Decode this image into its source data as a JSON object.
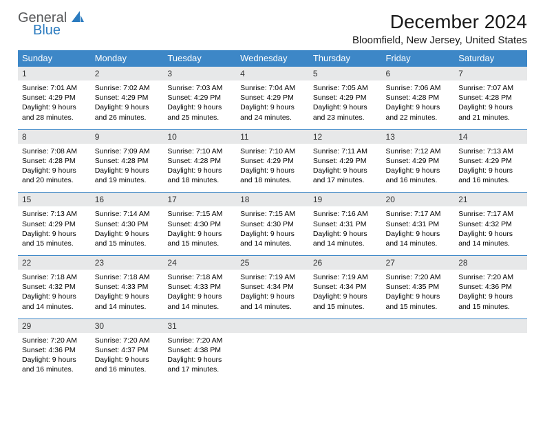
{
  "brand": {
    "part1": "General",
    "part2": "Blue"
  },
  "title": "December 2024",
  "location": "Bloomfield, New Jersey, United States",
  "colors": {
    "header_bg": "#3d87c7",
    "daynum_bg": "#e7e8e9",
    "row_border": "#3d87c7",
    "logo_gray": "#58595b",
    "logo_blue": "#2b7bbf"
  },
  "dow": [
    "Sunday",
    "Monday",
    "Tuesday",
    "Wednesday",
    "Thursday",
    "Friday",
    "Saturday"
  ],
  "weeks": [
    [
      {
        "n": "1",
        "sr": "Sunrise: 7:01 AM",
        "ss": "Sunset: 4:29 PM",
        "d1": "Daylight: 9 hours",
        "d2": "and 28 minutes."
      },
      {
        "n": "2",
        "sr": "Sunrise: 7:02 AM",
        "ss": "Sunset: 4:29 PM",
        "d1": "Daylight: 9 hours",
        "d2": "and 26 minutes."
      },
      {
        "n": "3",
        "sr": "Sunrise: 7:03 AM",
        "ss": "Sunset: 4:29 PM",
        "d1": "Daylight: 9 hours",
        "d2": "and 25 minutes."
      },
      {
        "n": "4",
        "sr": "Sunrise: 7:04 AM",
        "ss": "Sunset: 4:29 PM",
        "d1": "Daylight: 9 hours",
        "d2": "and 24 minutes."
      },
      {
        "n": "5",
        "sr": "Sunrise: 7:05 AM",
        "ss": "Sunset: 4:29 PM",
        "d1": "Daylight: 9 hours",
        "d2": "and 23 minutes."
      },
      {
        "n": "6",
        "sr": "Sunrise: 7:06 AM",
        "ss": "Sunset: 4:28 PM",
        "d1": "Daylight: 9 hours",
        "d2": "and 22 minutes."
      },
      {
        "n": "7",
        "sr": "Sunrise: 7:07 AM",
        "ss": "Sunset: 4:28 PM",
        "d1": "Daylight: 9 hours",
        "d2": "and 21 minutes."
      }
    ],
    [
      {
        "n": "8",
        "sr": "Sunrise: 7:08 AM",
        "ss": "Sunset: 4:28 PM",
        "d1": "Daylight: 9 hours",
        "d2": "and 20 minutes."
      },
      {
        "n": "9",
        "sr": "Sunrise: 7:09 AM",
        "ss": "Sunset: 4:28 PM",
        "d1": "Daylight: 9 hours",
        "d2": "and 19 minutes."
      },
      {
        "n": "10",
        "sr": "Sunrise: 7:10 AM",
        "ss": "Sunset: 4:28 PM",
        "d1": "Daylight: 9 hours",
        "d2": "and 18 minutes."
      },
      {
        "n": "11",
        "sr": "Sunrise: 7:10 AM",
        "ss": "Sunset: 4:29 PM",
        "d1": "Daylight: 9 hours",
        "d2": "and 18 minutes."
      },
      {
        "n": "12",
        "sr": "Sunrise: 7:11 AM",
        "ss": "Sunset: 4:29 PM",
        "d1": "Daylight: 9 hours",
        "d2": "and 17 minutes."
      },
      {
        "n": "13",
        "sr": "Sunrise: 7:12 AM",
        "ss": "Sunset: 4:29 PM",
        "d1": "Daylight: 9 hours",
        "d2": "and 16 minutes."
      },
      {
        "n": "14",
        "sr": "Sunrise: 7:13 AM",
        "ss": "Sunset: 4:29 PM",
        "d1": "Daylight: 9 hours",
        "d2": "and 16 minutes."
      }
    ],
    [
      {
        "n": "15",
        "sr": "Sunrise: 7:13 AM",
        "ss": "Sunset: 4:29 PM",
        "d1": "Daylight: 9 hours",
        "d2": "and 15 minutes."
      },
      {
        "n": "16",
        "sr": "Sunrise: 7:14 AM",
        "ss": "Sunset: 4:30 PM",
        "d1": "Daylight: 9 hours",
        "d2": "and 15 minutes."
      },
      {
        "n": "17",
        "sr": "Sunrise: 7:15 AM",
        "ss": "Sunset: 4:30 PM",
        "d1": "Daylight: 9 hours",
        "d2": "and 15 minutes."
      },
      {
        "n": "18",
        "sr": "Sunrise: 7:15 AM",
        "ss": "Sunset: 4:30 PM",
        "d1": "Daylight: 9 hours",
        "d2": "and 14 minutes."
      },
      {
        "n": "19",
        "sr": "Sunrise: 7:16 AM",
        "ss": "Sunset: 4:31 PM",
        "d1": "Daylight: 9 hours",
        "d2": "and 14 minutes."
      },
      {
        "n": "20",
        "sr": "Sunrise: 7:17 AM",
        "ss": "Sunset: 4:31 PM",
        "d1": "Daylight: 9 hours",
        "d2": "and 14 minutes."
      },
      {
        "n": "21",
        "sr": "Sunrise: 7:17 AM",
        "ss": "Sunset: 4:32 PM",
        "d1": "Daylight: 9 hours",
        "d2": "and 14 minutes."
      }
    ],
    [
      {
        "n": "22",
        "sr": "Sunrise: 7:18 AM",
        "ss": "Sunset: 4:32 PM",
        "d1": "Daylight: 9 hours",
        "d2": "and 14 minutes."
      },
      {
        "n": "23",
        "sr": "Sunrise: 7:18 AM",
        "ss": "Sunset: 4:33 PM",
        "d1": "Daylight: 9 hours",
        "d2": "and 14 minutes."
      },
      {
        "n": "24",
        "sr": "Sunrise: 7:18 AM",
        "ss": "Sunset: 4:33 PM",
        "d1": "Daylight: 9 hours",
        "d2": "and 14 minutes."
      },
      {
        "n": "25",
        "sr": "Sunrise: 7:19 AM",
        "ss": "Sunset: 4:34 PM",
        "d1": "Daylight: 9 hours",
        "d2": "and 14 minutes."
      },
      {
        "n": "26",
        "sr": "Sunrise: 7:19 AM",
        "ss": "Sunset: 4:34 PM",
        "d1": "Daylight: 9 hours",
        "d2": "and 15 minutes."
      },
      {
        "n": "27",
        "sr": "Sunrise: 7:20 AM",
        "ss": "Sunset: 4:35 PM",
        "d1": "Daylight: 9 hours",
        "d2": "and 15 minutes."
      },
      {
        "n": "28",
        "sr": "Sunrise: 7:20 AM",
        "ss": "Sunset: 4:36 PM",
        "d1": "Daylight: 9 hours",
        "d2": "and 15 minutes."
      }
    ],
    [
      {
        "n": "29",
        "sr": "Sunrise: 7:20 AM",
        "ss": "Sunset: 4:36 PM",
        "d1": "Daylight: 9 hours",
        "d2": "and 16 minutes."
      },
      {
        "n": "30",
        "sr": "Sunrise: 7:20 AM",
        "ss": "Sunset: 4:37 PM",
        "d1": "Daylight: 9 hours",
        "d2": "and 16 minutes."
      },
      {
        "n": "31",
        "sr": "Sunrise: 7:20 AM",
        "ss": "Sunset: 4:38 PM",
        "d1": "Daylight: 9 hours",
        "d2": "and 17 minutes."
      },
      null,
      null,
      null,
      null
    ]
  ]
}
